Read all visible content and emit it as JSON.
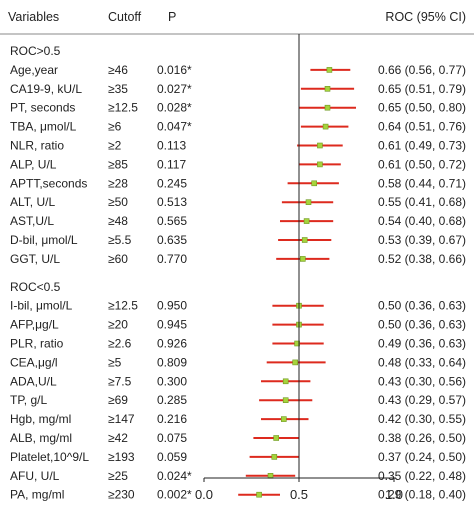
{
  "chart_data": {
    "type": "forest",
    "columns": {
      "variables": "Variables",
      "cutoff": "Cutoff",
      "p": "P",
      "roc": "ROC (95% CI)"
    },
    "reference_line": 0.5,
    "xlim": [
      0.0,
      1.0
    ],
    "x_ticks": [
      "0.0",
      "0.5",
      "1.0"
    ],
    "groups": [
      {
        "label": "ROC>0.5",
        "rows": [
          {
            "variable": "Age,year",
            "cutoff": "≥46",
            "p": "0.016*",
            "auc": 0.66,
            "lo": 0.56,
            "hi": 0.77,
            "roc_text": "0.66 (0.56, 0.77)"
          },
          {
            "variable": "CA19-9, kU/L",
            "cutoff": "≥35",
            "p": "0.027*",
            "auc": 0.65,
            "lo": 0.51,
            "hi": 0.79,
            "roc_text": "0.65 (0.51, 0.79)"
          },
          {
            "variable": "PT, seconds",
            "cutoff": "≥12.5",
            "p": "0.028*",
            "auc": 0.65,
            "lo": 0.5,
            "hi": 0.8,
            "roc_text": "0.65 (0.50, 0.80)"
          },
          {
            "variable": "TBA, μmol/L",
            "cutoff": "≥6",
            "p": "0.047*",
            "auc": 0.64,
            "lo": 0.51,
            "hi": 0.76,
            "roc_text": "0.64 (0.51, 0.76)"
          },
          {
            "variable": "NLR, ratio",
            "cutoff": "≥2",
            "p": "0.113",
            "auc": 0.61,
            "lo": 0.49,
            "hi": 0.73,
            "roc_text": "0.61 (0.49, 0.73)"
          },
          {
            "variable": "ALP, U/L",
            "cutoff": "≥85",
            "p": "0.117",
            "auc": 0.61,
            "lo": 0.5,
            "hi": 0.72,
            "roc_text": "0.61 (0.50, 0.72)"
          },
          {
            "variable": "APTT,seconds",
            "cutoff": "≥28",
            "p": "0.245",
            "auc": 0.58,
            "lo": 0.44,
            "hi": 0.71,
            "roc_text": "0.58 (0.44, 0.71)"
          },
          {
            "variable": "ALT, U/L",
            "cutoff": "≥50",
            "p": "0.513",
            "auc": 0.55,
            "lo": 0.41,
            "hi": 0.68,
            "roc_text": "0.55 (0.41, 0.68)"
          },
          {
            "variable": "AST,U/L",
            "cutoff": "≥48",
            "p": "0.565",
            "auc": 0.54,
            "lo": 0.4,
            "hi": 0.68,
            "roc_text": "0.54 (0.40, 0.68)"
          },
          {
            "variable": "D-bil, μmol/L",
            "cutoff": "≥5.5",
            "p": "0.635",
            "auc": 0.53,
            "lo": 0.39,
            "hi": 0.67,
            "roc_text": "0.53 (0.39, 0.67)"
          },
          {
            "variable": "GGT, U/L",
            "cutoff": "≥60",
            "p": "0.770",
            "auc": 0.52,
            "lo": 0.38,
            "hi": 0.66,
            "roc_text": "0.52 (0.38, 0.66)"
          }
        ]
      },
      {
        "label": "ROC<0.5",
        "rows": [
          {
            "variable": "I-bil, μmol/L",
            "cutoff": "≥12.5",
            "p": "0.950",
            "auc": 0.5,
            "lo": 0.36,
            "hi": 0.63,
            "roc_text": "0.50 (0.36, 0.63)"
          },
          {
            "variable": "AFP,μg/L",
            "cutoff": "≥20",
            "p": "0.945",
            "auc": 0.5,
            "lo": 0.36,
            "hi": 0.63,
            "roc_text": "0.50 (0.36, 0.63)"
          },
          {
            "variable": "PLR, ratio",
            "cutoff": "≥2.6",
            "p": "0.926",
            "auc": 0.49,
            "lo": 0.36,
            "hi": 0.63,
            "roc_text": "0.49 (0.36, 0.63)"
          },
          {
            "variable": "CEA,μg/l",
            "cutoff": "≥5",
            "p": "0.809",
            "auc": 0.48,
            "lo": 0.33,
            "hi": 0.64,
            "roc_text": "0.48 (0.33, 0.64)"
          },
          {
            "variable": "ADA,U/L",
            "cutoff": "≥7.5",
            "p": "0.300",
            "auc": 0.43,
            "lo": 0.3,
            "hi": 0.56,
            "roc_text": "0.43 (0.30, 0.56)"
          },
          {
            "variable": "TP, g/L",
            "cutoff": "≥69",
            "p": "0.285",
            "auc": 0.43,
            "lo": 0.29,
            "hi": 0.57,
            "roc_text": "0.43 (0.29, 0.57)"
          },
          {
            "variable": "Hgb, mg/ml",
            "cutoff": "≥147",
            "p": "0.216",
            "auc": 0.42,
            "lo": 0.3,
            "hi": 0.55,
            "roc_text": "0.42 (0.30, 0.55)"
          },
          {
            "variable": "ALB, mg/ml",
            "cutoff": "≥42",
            "p": "0.075",
            "auc": 0.38,
            "lo": 0.26,
            "hi": 0.5,
            "roc_text": "0.38 (0.26, 0.50)"
          },
          {
            "variable": "Platelet,10^9/L",
            "cutoff": "≥193",
            "p": "0.059",
            "auc": 0.37,
            "lo": 0.24,
            "hi": 0.5,
            "roc_text": "0.37 (0.24, 0.50)"
          },
          {
            "variable": "AFU, U/L",
            "cutoff": "≥25",
            "p": "0.024*",
            "auc": 0.35,
            "lo": 0.22,
            "hi": 0.48,
            "roc_text": "0.35 (0.22, 0.48)"
          },
          {
            "variable": "PA, mg/ml",
            "cutoff": "≥230",
            "p": "0.002*",
            "auc": 0.29,
            "lo": 0.18,
            "hi": 0.4,
            "roc_text": "0.29 (0.18, 0.40)"
          }
        ]
      }
    ],
    "colors": {
      "ci_line": "#dd2a1e",
      "point_fill": "#a6d33c",
      "point_stroke": "#6f9a22",
      "axis": "#222222",
      "header_rule": "#888888"
    }
  }
}
